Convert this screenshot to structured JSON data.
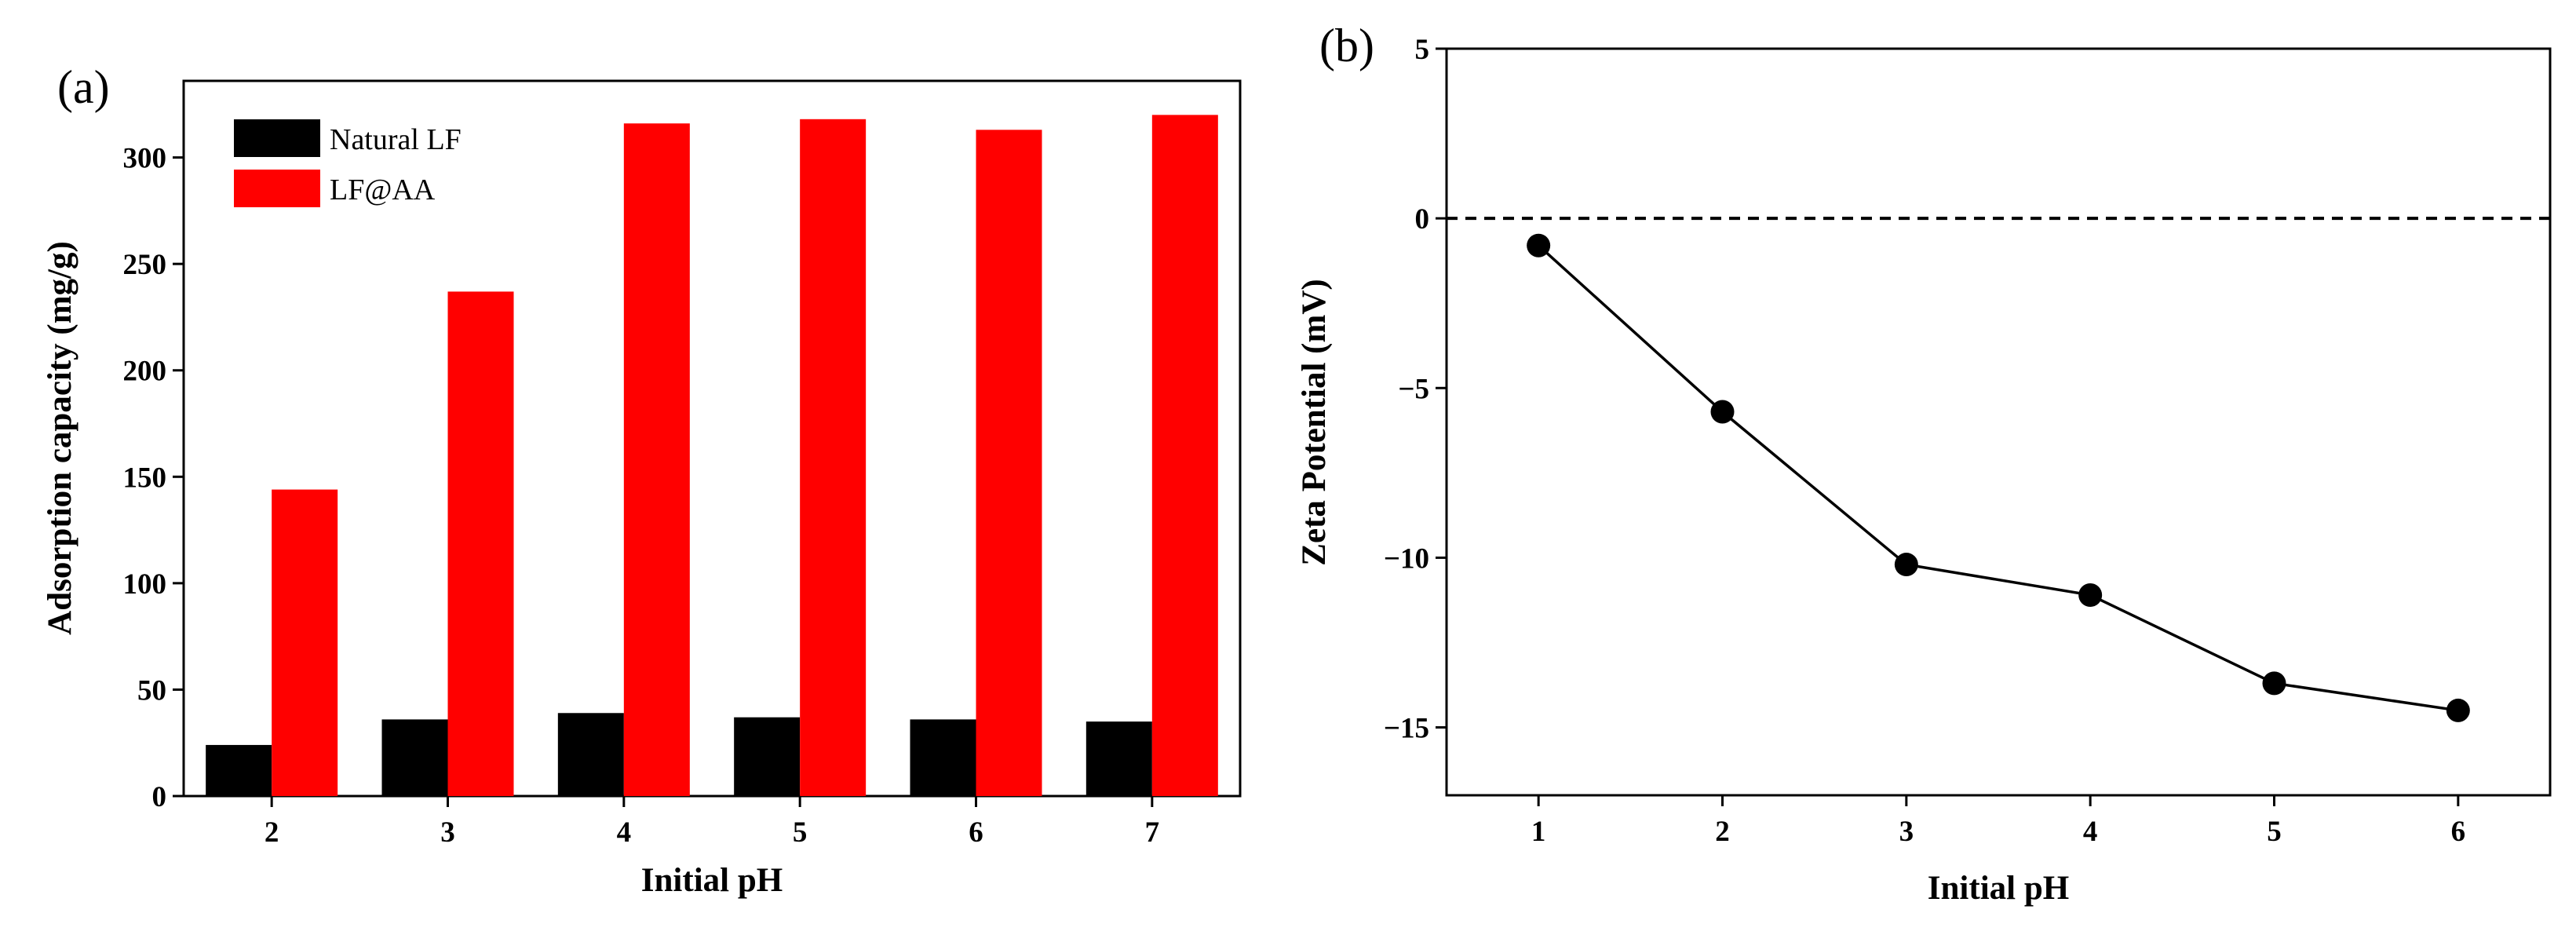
{
  "colors": {
    "series_a": "#000000",
    "series_b": "#ff0000",
    "line": "#000000",
    "background": "#ffffff"
  },
  "chart_data": [
    {
      "panel": "(a)",
      "type": "bar",
      "title": "",
      "xlabel": "Initial pH",
      "ylabel": "Adsorption capacity (mg/g)",
      "categories": [
        "2",
        "3",
        "4",
        "5",
        "6",
        "7"
      ],
      "series": [
        {
          "name": "Natural LF",
          "values": [
            24,
            36,
            39,
            37,
            36,
            35
          ],
          "color": "#000000"
        },
        {
          "name": "LF@AA",
          "values": [
            144,
            237,
            316,
            318,
            313,
            320
          ],
          "color": "#ff0000"
        }
      ],
      "ylim": [
        0,
        336
      ],
      "yticks": [
        "0",
        "50",
        "100",
        "150",
        "200",
        "250",
        "300"
      ],
      "legend": "top-left",
      "grid": false
    },
    {
      "panel": "(b)",
      "type": "line",
      "title": "",
      "xlabel": "Initial pH",
      "ylabel": "Zeta Potential (mV)",
      "x": [
        1,
        2,
        3,
        4,
        5,
        6
      ],
      "y": [
        -0.8,
        -5.7,
        -10.2,
        -11.1,
        -13.7,
        -14.5
      ],
      "xticks": [
        "1",
        "2",
        "3",
        "4",
        "5",
        "6"
      ],
      "yticks": [
        "5",
        "0",
        "-5",
        "-10",
        "-15"
      ],
      "xlim": [
        0.5,
        6.5
      ],
      "ylim": [
        -17,
        5
      ],
      "reference_line_y": 0,
      "markers": "filled-circle",
      "grid": false
    }
  ]
}
